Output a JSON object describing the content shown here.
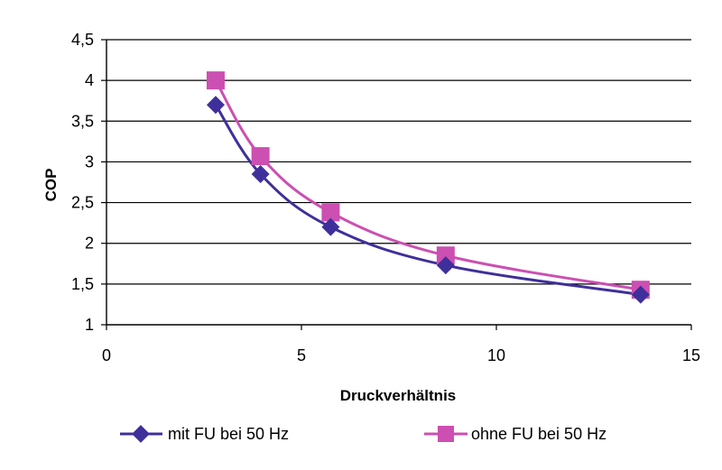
{
  "chart_data": {
    "type": "line",
    "title": "",
    "xlabel": "Druckverhältnis",
    "ylabel": "COP",
    "xlim": [
      0,
      15
    ],
    "ylim": [
      1,
      4.5
    ],
    "xticks": [
      "0",
      "5",
      "10",
      "15"
    ],
    "yticks": [
      "1",
      "1,5",
      "2",
      "2,5",
      "3",
      "3,5",
      "4",
      "4,5"
    ],
    "grid": "horizontal",
    "legend_position": "bottom",
    "series": [
      {
        "name": "mit FU bei 50 Hz",
        "color": "#3f2f9a",
        "marker": "diamond",
        "points": [
          {
            "x": 2.8,
            "y": 3.7
          },
          {
            "x": 3.95,
            "y": 2.85
          },
          {
            "x": 5.75,
            "y": 2.2
          },
          {
            "x": 8.7,
            "y": 1.73
          },
          {
            "x": 13.7,
            "y": 1.37
          }
        ]
      },
      {
        "name": "ohne FU bei 50 Hz",
        "color": "#cc4fb2",
        "marker": "square",
        "points": [
          {
            "x": 2.8,
            "y": 4.0
          },
          {
            "x": 3.95,
            "y": 3.07
          },
          {
            "x": 5.75,
            "y": 2.38
          },
          {
            "x": 8.7,
            "y": 1.85
          },
          {
            "x": 13.7,
            "y": 1.43
          }
        ]
      }
    ]
  }
}
